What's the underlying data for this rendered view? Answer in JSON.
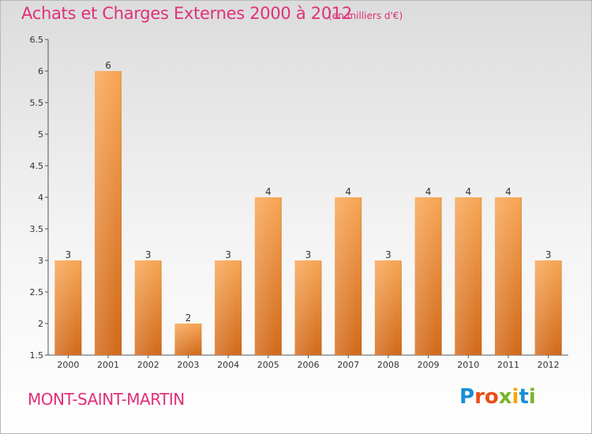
{
  "header": {
    "title": "Achats et Charges Externes 2000 à 2012",
    "subtitle": "(en milliers d'€)"
  },
  "footer": {
    "town": "MONT-SAINT-MARTIN",
    "logo": "Proxiti",
    "logo_colors": [
      "#1a8fd6",
      "#e94e1b",
      "#e94e1b",
      "#7ab42a",
      "#f7a800",
      "#1a8fd6",
      "#7ab42a"
    ]
  },
  "chart_data": {
    "type": "bar",
    "categories": [
      "2000",
      "2001",
      "2002",
      "2003",
      "2004",
      "2005",
      "2006",
      "2007",
      "2008",
      "2009",
      "2010",
      "2011",
      "2012"
    ],
    "values": [
      3,
      6,
      3,
      2,
      3,
      4,
      3,
      4,
      3,
      4,
      4,
      4,
      3
    ],
    "data_labels": [
      "3",
      "6",
      "3",
      "2",
      "3",
      "4",
      "3",
      "4",
      "3",
      "4",
      "4",
      "4",
      "3"
    ],
    "yticks": [
      "1.5",
      "2",
      "2.5",
      "3",
      "3.5",
      "4",
      "4.5",
      "5",
      "5.5",
      "6",
      "6.5"
    ],
    "ylim": [
      1.5,
      6.5
    ],
    "grid": false,
    "bar_color": "#f08a2c"
  }
}
